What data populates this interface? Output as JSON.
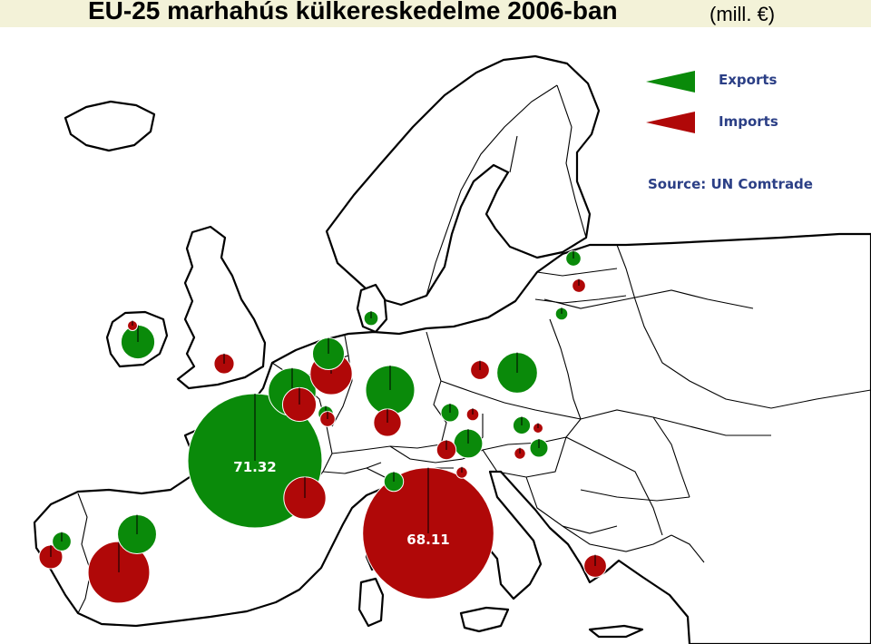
{
  "title": "EU-25 marhahús külkereskedelme 2006-ban",
  "unit": "(mill. €)",
  "legend": [
    {
      "label": "Exports",
      "color": "#0a8a0a"
    },
    {
      "label": "Imports",
      "color": "#b00808"
    }
  ],
  "source": "Source: UN Comtrade",
  "colors": {
    "export": "#0a8a0a",
    "import": "#b00808",
    "land_stroke": "#000000",
    "title_bar": "#f3f2d8",
    "legend_text": "#2b3f86"
  },
  "bubbles": [
    {
      "name": "bubble-france-export",
      "kind": "export",
      "value": 71.32,
      "label": "71.32"
    },
    {
      "name": "bubble-italy-import",
      "kind": "import",
      "value": 68.11,
      "label": "68.11"
    },
    {
      "name": "bubble-spain-import",
      "kind": "import",
      "value": 15
    },
    {
      "name": "bubble-germany-export",
      "kind": "export",
      "value": 9.5
    },
    {
      "name": "bubble-spain-export",
      "kind": "export",
      "value": 6
    },
    {
      "name": "bubble-belgium-export",
      "kind": "export",
      "value": 9
    },
    {
      "name": "bubble-netherlands-import",
      "kind": "import",
      "value": 7
    },
    {
      "name": "bubble-france-import",
      "kind": "import",
      "value": 7
    },
    {
      "name": "bubble-poland-export",
      "kind": "export",
      "value": 6.5
    },
    {
      "name": "bubble-ireland-export",
      "kind": "export",
      "value": 4.5
    },
    {
      "name": "bubble-netherlands-export",
      "kind": "export",
      "value": 4
    },
    {
      "name": "bubble-belgium-import",
      "kind": "import",
      "value": 4.5
    },
    {
      "name": "bubble-austria-export",
      "kind": "export",
      "value": 3.3
    },
    {
      "name": "bubble-germany-import",
      "kind": "import",
      "value": 3
    },
    {
      "name": "bubble-greece-import",
      "kind": "import",
      "value": 2
    },
    {
      "name": "bubble-portugal-import",
      "kind": "import",
      "value": 2.2
    },
    {
      "name": "bubble-uk-import",
      "kind": "import",
      "value": 1.6
    },
    {
      "name": "bubble-czech-export",
      "kind": "export",
      "value": 1.3
    },
    {
      "name": "bubble-slovakia-export",
      "kind": "export",
      "value": 1.2
    },
    {
      "name": "bubble-hungary-export",
      "kind": "export",
      "value": 1.3
    },
    {
      "name": "bubble-slovenia-import",
      "kind": "import",
      "value": 1.5
    },
    {
      "name": "bubble-slovenia-export",
      "kind": "export",
      "value": 1.5
    },
    {
      "name": "bubble-portugal-export",
      "kind": "export",
      "value": 1.4
    },
    {
      "name": "bubble-poland-import",
      "kind": "import",
      "value": 1.4
    },
    {
      "name": "bubble-luxembourg-export",
      "kind": "export",
      "value": 0.9
    },
    {
      "name": "bubble-luxembourg-import",
      "kind": "import",
      "value": 0.9
    },
    {
      "name": "bubble-denmark-export",
      "kind": "export",
      "value": 0.8
    },
    {
      "name": "bubble-latvia-export",
      "kind": "export",
      "value": 0.9
    },
    {
      "name": "bubble-lithuania-import",
      "kind": "import",
      "value": 0.7
    },
    {
      "name": "bubble-lithuania-export",
      "kind": "export",
      "value": 0.6
    },
    {
      "name": "bubble-czech-import",
      "kind": "import",
      "value": 0.6
    },
    {
      "name": "bubble-hungary-import",
      "kind": "import",
      "value": 0.5
    },
    {
      "name": "bubble-ireland-import",
      "kind": "import",
      "value": 0.3
    },
    {
      "name": "bubble-austria-import",
      "kind": "import",
      "value": 0.5
    },
    {
      "name": "bubble-slovakia-import",
      "kind": "import",
      "value": 0.3
    }
  ]
}
